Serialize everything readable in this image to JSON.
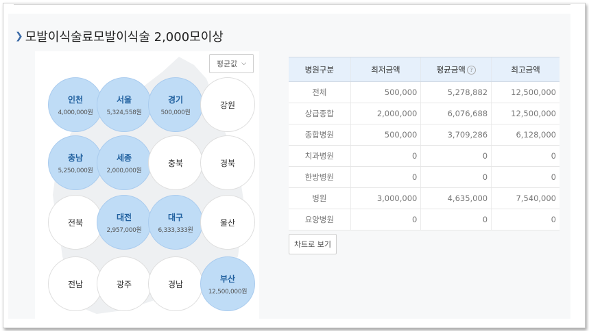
{
  "page": {
    "title": "모발이식술료모발이식술 2,000모이상"
  },
  "map": {
    "select_label": "평균값",
    "regions": [
      {
        "name": "인천",
        "value": "4,000,000원",
        "active": true
      },
      {
        "name": "서울",
        "value": "5,324,558원",
        "active": true
      },
      {
        "name": "경기",
        "value": "500,000원",
        "active": true
      },
      {
        "name": "강원",
        "value": "",
        "active": false
      },
      {
        "name": "충남",
        "value": "5,250,000원",
        "active": true
      },
      {
        "name": "세종",
        "value": "2,000,000원",
        "active": true
      },
      {
        "name": "충북",
        "value": "",
        "active": false
      },
      {
        "name": "경북",
        "value": "",
        "active": false
      },
      {
        "name": "전북",
        "value": "",
        "active": false
      },
      {
        "name": "대전",
        "value": "2,957,000원",
        "active": true
      },
      {
        "name": "대구",
        "value": "6,333,333원",
        "active": true
      },
      {
        "name": "울산",
        "value": "",
        "active": false
      },
      {
        "name": "전남",
        "value": "",
        "active": false
      },
      {
        "name": "광주",
        "value": "",
        "active": false
      },
      {
        "name": "경남",
        "value": "",
        "active": false
      },
      {
        "name": "부산",
        "value": "12,500,000원",
        "active": true
      }
    ]
  },
  "table": {
    "headers": [
      "병원구분",
      "최저금액",
      "평균금액",
      "최고금액"
    ],
    "rows": [
      [
        "전체",
        "500,000",
        "5,278,882",
        "12,500,000"
      ],
      [
        "상급종합",
        "2,000,000",
        "6,076,688",
        "12,500,000"
      ],
      [
        "종합병원",
        "500,000",
        "3,709,286",
        "6,128,000"
      ],
      [
        "치과병원",
        "0",
        "0",
        "0"
      ],
      [
        "한방병원",
        "0",
        "0",
        "0"
      ],
      [
        "병원",
        "3,000,000",
        "4,635,000",
        "7,540,000"
      ],
      [
        "요양병원",
        "0",
        "0",
        "0"
      ]
    ]
  },
  "chart_button": "차트로 보기",
  "colors": {
    "active_circle": "#bfdcf6",
    "active_text": "#1f5f9e",
    "table_header": "#e6f0fb"
  }
}
